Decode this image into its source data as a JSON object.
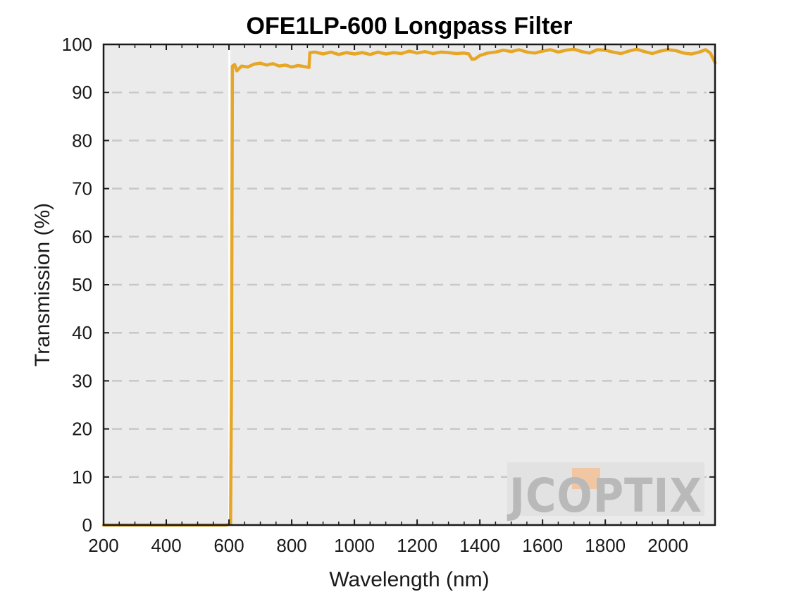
{
  "chart_data": {
    "type": "line",
    "title": "OFE1LP-600 Longpass Filter",
    "xlabel": "Wavelength (nm)",
    "ylabel": "Transmission (%)",
    "xlim": [
      200,
      2150
    ],
    "ylim": [
      0,
      100
    ],
    "x_ticks": [
      200,
      400,
      600,
      800,
      1000,
      1200,
      1400,
      1600,
      1800,
      2000
    ],
    "y_ticks": [
      0,
      10,
      20,
      30,
      40,
      50,
      60,
      70,
      80,
      90,
      100
    ],
    "grid": "horizontal dashed",
    "series": [
      {
        "color": "#e6a626",
        "points": [
          [
            200,
            0
          ],
          [
            300,
            0
          ],
          [
            400,
            0
          ],
          [
            500,
            0
          ],
          [
            590,
            0
          ],
          [
            605,
            0.2
          ],
          [
            608,
            30
          ],
          [
            611,
            95.5
          ],
          [
            618,
            95.8
          ],
          [
            625,
            94.5
          ],
          [
            640,
            95.5
          ],
          [
            660,
            95.3
          ],
          [
            680,
            95.9
          ],
          [
            700,
            96.1
          ],
          [
            720,
            95.7
          ],
          [
            740,
            96.0
          ],
          [
            760,
            95.5
          ],
          [
            780,
            95.7
          ],
          [
            800,
            95.3
          ],
          [
            820,
            95.6
          ],
          [
            840,
            95.4
          ],
          [
            855,
            95.2
          ],
          [
            858,
            98.3
          ],
          [
            875,
            98.4
          ],
          [
            900,
            98.0
          ],
          [
            925,
            98.4
          ],
          [
            950,
            97.9
          ],
          [
            975,
            98.3
          ],
          [
            1000,
            98.0
          ],
          [
            1025,
            98.3
          ],
          [
            1050,
            97.9
          ],
          [
            1075,
            98.4
          ],
          [
            1100,
            98.0
          ],
          [
            1125,
            98.3
          ],
          [
            1150,
            98.1
          ],
          [
            1175,
            98.6
          ],
          [
            1200,
            98.2
          ],
          [
            1225,
            98.5
          ],
          [
            1250,
            98.1
          ],
          [
            1275,
            98.4
          ],
          [
            1300,
            98.3
          ],
          [
            1325,
            98.1
          ],
          [
            1350,
            98.2
          ],
          [
            1365,
            98.0
          ],
          [
            1375,
            96.9
          ],
          [
            1385,
            97.0
          ],
          [
            1400,
            97.7
          ],
          [
            1425,
            98.2
          ],
          [
            1450,
            98.4
          ],
          [
            1475,
            98.8
          ],
          [
            1500,
            98.5
          ],
          [
            1525,
            98.9
          ],
          [
            1550,
            98.4
          ],
          [
            1575,
            98.2
          ],
          [
            1600,
            98.6
          ],
          [
            1625,
            98.9
          ],
          [
            1650,
            98.4
          ],
          [
            1675,
            98.8
          ],
          [
            1700,
            99.0
          ],
          [
            1725,
            98.5
          ],
          [
            1750,
            98.2
          ],
          [
            1775,
            98.9
          ],
          [
            1800,
            98.8
          ],
          [
            1825,
            98.4
          ],
          [
            1850,
            98.1
          ],
          [
            1875,
            98.6
          ],
          [
            1900,
            99.0
          ],
          [
            1925,
            98.5
          ],
          [
            1950,
            98.1
          ],
          [
            1975,
            98.6
          ],
          [
            2000,
            98.9
          ],
          [
            2025,
            98.7
          ],
          [
            2050,
            98.2
          ],
          [
            2075,
            98.0
          ],
          [
            2100,
            98.4
          ],
          [
            2120,
            98.9
          ],
          [
            2135,
            98.2
          ],
          [
            2150,
            96.2
          ]
        ]
      }
    ]
  },
  "colors": {
    "plot_background": "#ebebeb",
    "gridline": "#c8c8c8",
    "series_line": "#e6a626"
  },
  "watermark": {
    "logo_text": "JCOPTIX",
    "logo_accent_color": "#f0c6a3",
    "logo_color": "#b9b9b9"
  }
}
